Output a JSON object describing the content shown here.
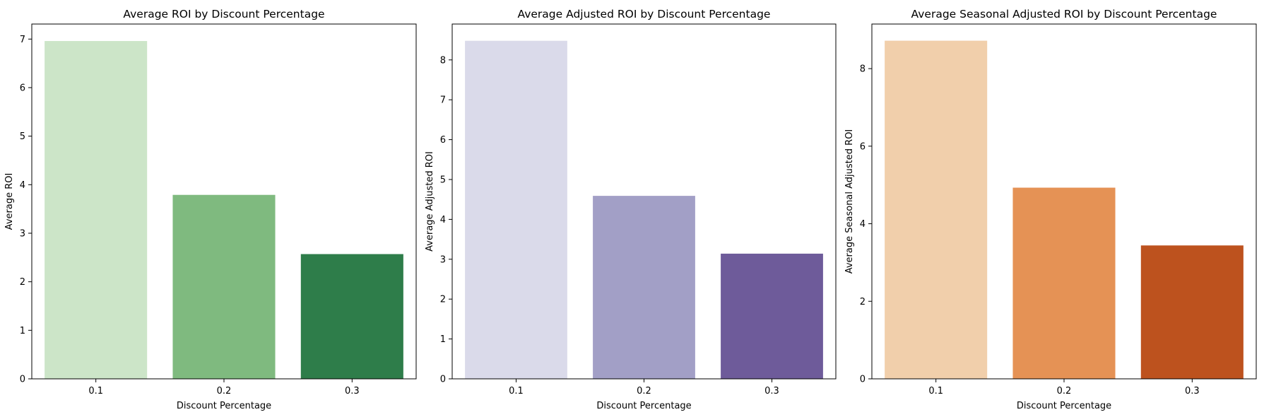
{
  "chart_data": [
    {
      "type": "bar",
      "title": "Average ROI by Discount Percentage",
      "xlabel": "Discount Percentage",
      "ylabel": "Average ROI",
      "categories": [
        "0.1",
        "0.2",
        "0.3"
      ],
      "values": [
        6.96,
        3.79,
        2.57
      ],
      "colors": [
        "#cce5c8",
        "#7fba7f",
        "#2e7d4a"
      ],
      "yticks": [
        0,
        1,
        2,
        3,
        4,
        5,
        6,
        7
      ],
      "ylim": [
        0,
        7.31
      ]
    },
    {
      "type": "bar",
      "title": "Average Adjusted ROI by Discount Percentage",
      "xlabel": "Discount Percentage",
      "ylabel": "Average Adjusted ROI",
      "categories": [
        "0.1",
        "0.2",
        "0.3"
      ],
      "values": [
        8.48,
        4.59,
        3.14
      ],
      "colors": [
        "#dadaea",
        "#a29fc6",
        "#6e5b9a"
      ],
      "yticks": [
        0,
        1,
        2,
        3,
        4,
        5,
        6,
        7,
        8
      ],
      "ylim": [
        0,
        8.9
      ]
    },
    {
      "type": "bar",
      "title": "Average Seasonal Adjusted ROI by Discount Percentage",
      "xlabel": "Discount Percentage",
      "ylabel": "Average Seasonal Adjusted ROI",
      "categories": [
        "0.1",
        "0.2",
        "0.3"
      ],
      "values": [
        8.72,
        4.93,
        3.44
      ],
      "colors": [
        "#f1cfab",
        "#e59255",
        "#bd521e"
      ],
      "yticks": [
        0,
        2,
        4,
        6,
        8
      ],
      "ylim": [
        0,
        9.15
      ]
    }
  ]
}
